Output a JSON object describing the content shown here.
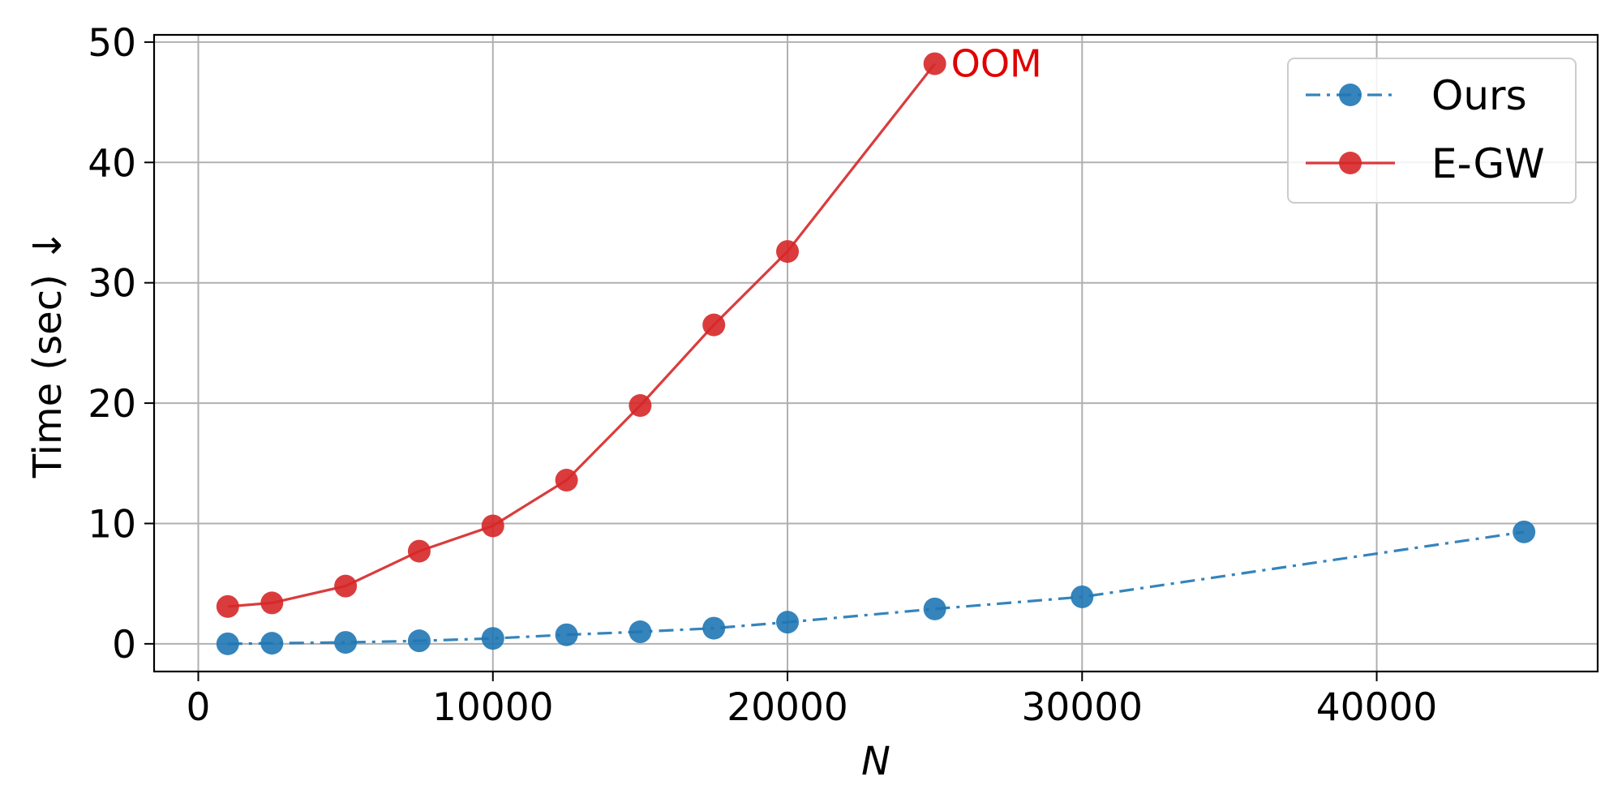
{
  "chart_data": {
    "type": "line",
    "title": "",
    "xlabel": "N",
    "ylabel": "Time (sec) ↓",
    "xlim": [
      -1500,
      47500
    ],
    "ylim": [
      -2.3,
      50.6
    ],
    "xticks": [
      0,
      10000,
      20000,
      30000,
      40000
    ],
    "xtick_labels": [
      "0",
      "10000",
      "20000",
      "30000",
      "40000"
    ],
    "yticks": [
      0,
      10,
      20,
      30,
      40,
      50
    ],
    "ytick_labels": [
      "0",
      "10",
      "20",
      "30",
      "40",
      "50"
    ],
    "grid": true,
    "legend_position": "top-right",
    "series": [
      {
        "name": "Ours",
        "color": "#1f77b4",
        "line_style": "dash-dot",
        "marker": "circle",
        "x": [
          1000,
          2500,
          5000,
          7500,
          10000,
          12500,
          15000,
          17500,
          20000,
          25000,
          30000,
          45000
        ],
        "y": [
          0.0,
          0.05,
          0.12,
          0.25,
          0.45,
          0.75,
          1.0,
          1.3,
          1.8,
          2.9,
          3.9,
          9.3
        ]
      },
      {
        "name": "E-GW",
        "color": "#d62728",
        "line_style": "solid",
        "marker": "circle",
        "x": [
          1000,
          2500,
          5000,
          7500,
          10000,
          12500,
          15000,
          17500,
          20000,
          25000
        ],
        "y": [
          3.1,
          3.4,
          4.8,
          7.7,
          9.8,
          13.6,
          19.8,
          26.5,
          32.6,
          48.2
        ]
      }
    ],
    "annotations": [
      {
        "text": "OOM",
        "color": "#e00000",
        "x": 25000,
        "y": 48.2
      }
    ]
  }
}
